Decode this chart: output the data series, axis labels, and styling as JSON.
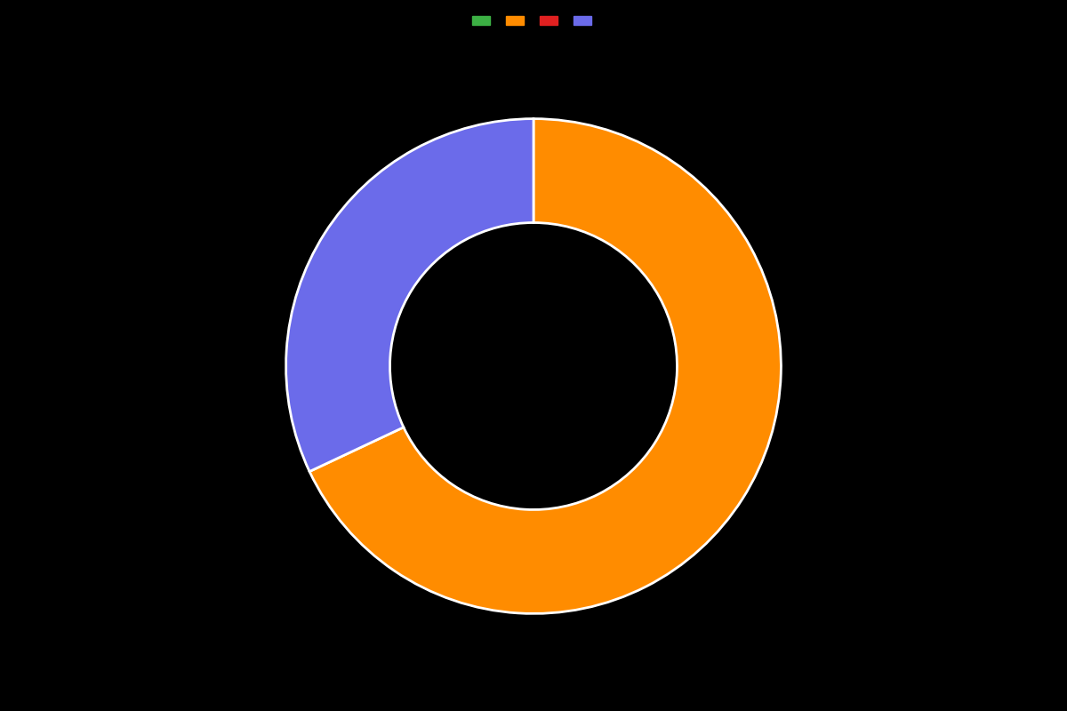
{
  "values": [
    68.0,
    32.0
  ],
  "colors": [
    "#ff8c00",
    "#6b6bea"
  ],
  "legend_colors": [
    "#3cb044",
    "#ff8c00",
    "#e02020",
    "#6b6bea"
  ],
  "background_color": "#000000",
  "wedge_linewidth": 2.0,
  "wedge_linecolor": "#ffffff",
  "donut_width": 0.42,
  "startangle": 90,
  "figsize": [
    12.0,
    8.0
  ],
  "dpi": 100
}
